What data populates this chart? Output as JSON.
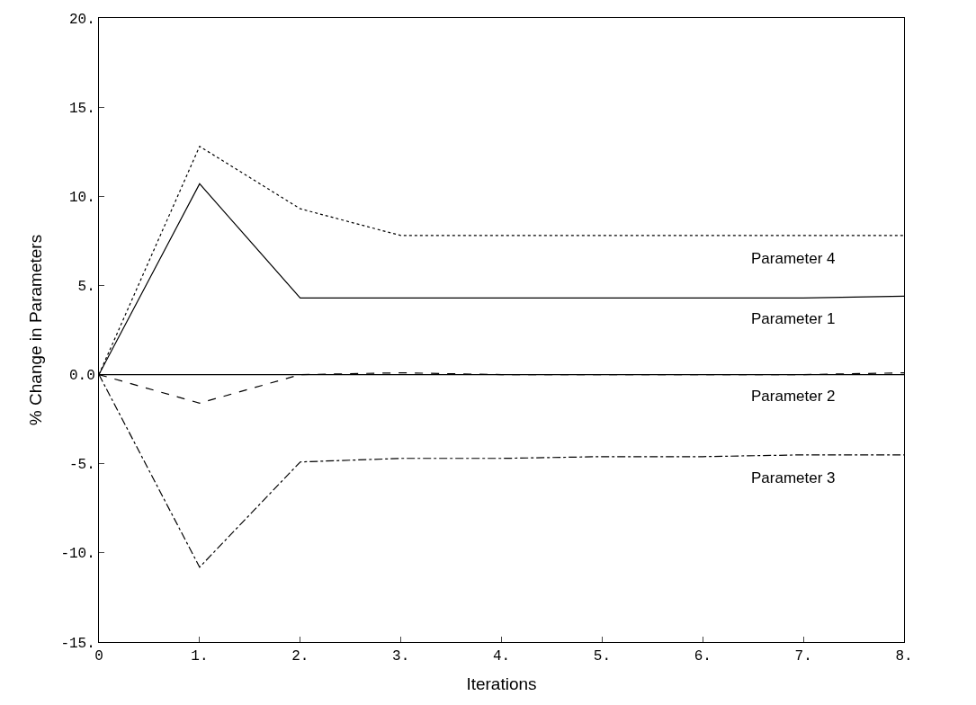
{
  "chart_data": {
    "type": "line",
    "xlabel": "Iterations",
    "ylabel": "% Change in Parameters",
    "x": [
      0,
      1,
      2,
      3,
      4,
      5,
      6,
      7,
      8
    ],
    "series": [
      {
        "name": "Parameter 4",
        "color": "#000000",
        "line_style": "dotted",
        "values": [
          0,
          12.8,
          9.3,
          7.8,
          7.8,
          7.8,
          7.8,
          7.8,
          7.8
        ]
      },
      {
        "name": "Parameter 1",
        "color": "#000000",
        "line_style": "solid",
        "values": [
          0,
          10.7,
          4.3,
          4.3,
          4.3,
          4.3,
          4.3,
          4.3,
          4.4
        ]
      },
      {
        "name": "Parameter 2",
        "color": "#000000",
        "line_style": "dashed",
        "values": [
          0,
          -1.6,
          0,
          0.1,
          0,
          0,
          0,
          0,
          0.1
        ]
      },
      {
        "name": "Parameter 3",
        "color": "#000000",
        "line_style": "dashdot",
        "values": [
          0,
          -10.8,
          -4.9,
          -4.7,
          -4.7,
          -4.6,
          -4.6,
          -4.5,
          -4.5
        ]
      }
    ],
    "ref_lines": [
      {
        "axis": "y",
        "value": 0,
        "color": "#000000",
        "line_style": "solid"
      }
    ],
    "xlim": [
      0,
      8
    ],
    "ylim": [
      -15,
      20
    ],
    "xticks": [
      {
        "value": 0,
        "label": "0"
      },
      {
        "value": 1,
        "label": "1."
      },
      {
        "value": 2,
        "label": "2."
      },
      {
        "value": 3,
        "label": "3."
      },
      {
        "value": 4,
        "label": "4."
      },
      {
        "value": 5,
        "label": "5."
      },
      {
        "value": 6,
        "label": "6."
      },
      {
        "value": 7,
        "label": "7."
      },
      {
        "value": 8,
        "label": "8."
      }
    ],
    "yticks": [
      {
        "value": -15,
        "label": "-15."
      },
      {
        "value": -10,
        "label": "-10."
      },
      {
        "value": -5,
        "label": "-5."
      },
      {
        "value": 0,
        "label": "0.0"
      },
      {
        "value": 5,
        "label": "5."
      },
      {
        "value": 10,
        "label": "10."
      },
      {
        "value": 15,
        "label": "15."
      },
      {
        "value": 20,
        "label": "20."
      }
    ],
    "legend": false,
    "marker": "none"
  }
}
